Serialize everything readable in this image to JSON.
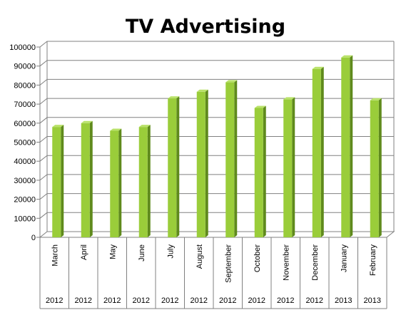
{
  "chart_data": {
    "type": "bar",
    "title": "TV Advertising",
    "xlabel": "",
    "ylabel": "",
    "ylim": [
      0,
      100000
    ],
    "yticks": [
      "0",
      "10000",
      "20000",
      "30000",
      "40000",
      "50000",
      "60000",
      "70000",
      "80000",
      "90000",
      "100000"
    ],
    "grid": true,
    "legend": "none",
    "categories": [
      "March",
      "April",
      "May",
      "June",
      "July",
      "August",
      "September",
      "October",
      "November",
      "December",
      "January",
      "February"
    ],
    "groups": [
      "2012",
      "2012",
      "2012",
      "2012",
      "2012",
      "2012",
      "2012",
      "2012",
      "2012",
      "2012",
      "2013",
      "2013"
    ],
    "values": [
      58000,
      60000,
      56000,
      58000,
      73000,
      76500,
      81500,
      68000,
      72500,
      88500,
      94500,
      72000
    ],
    "colors": {
      "bar_front": "#9acd3a",
      "bar_side": "#5f8a1c",
      "bar_top": "#b9e26a",
      "grid": "#808080"
    }
  }
}
